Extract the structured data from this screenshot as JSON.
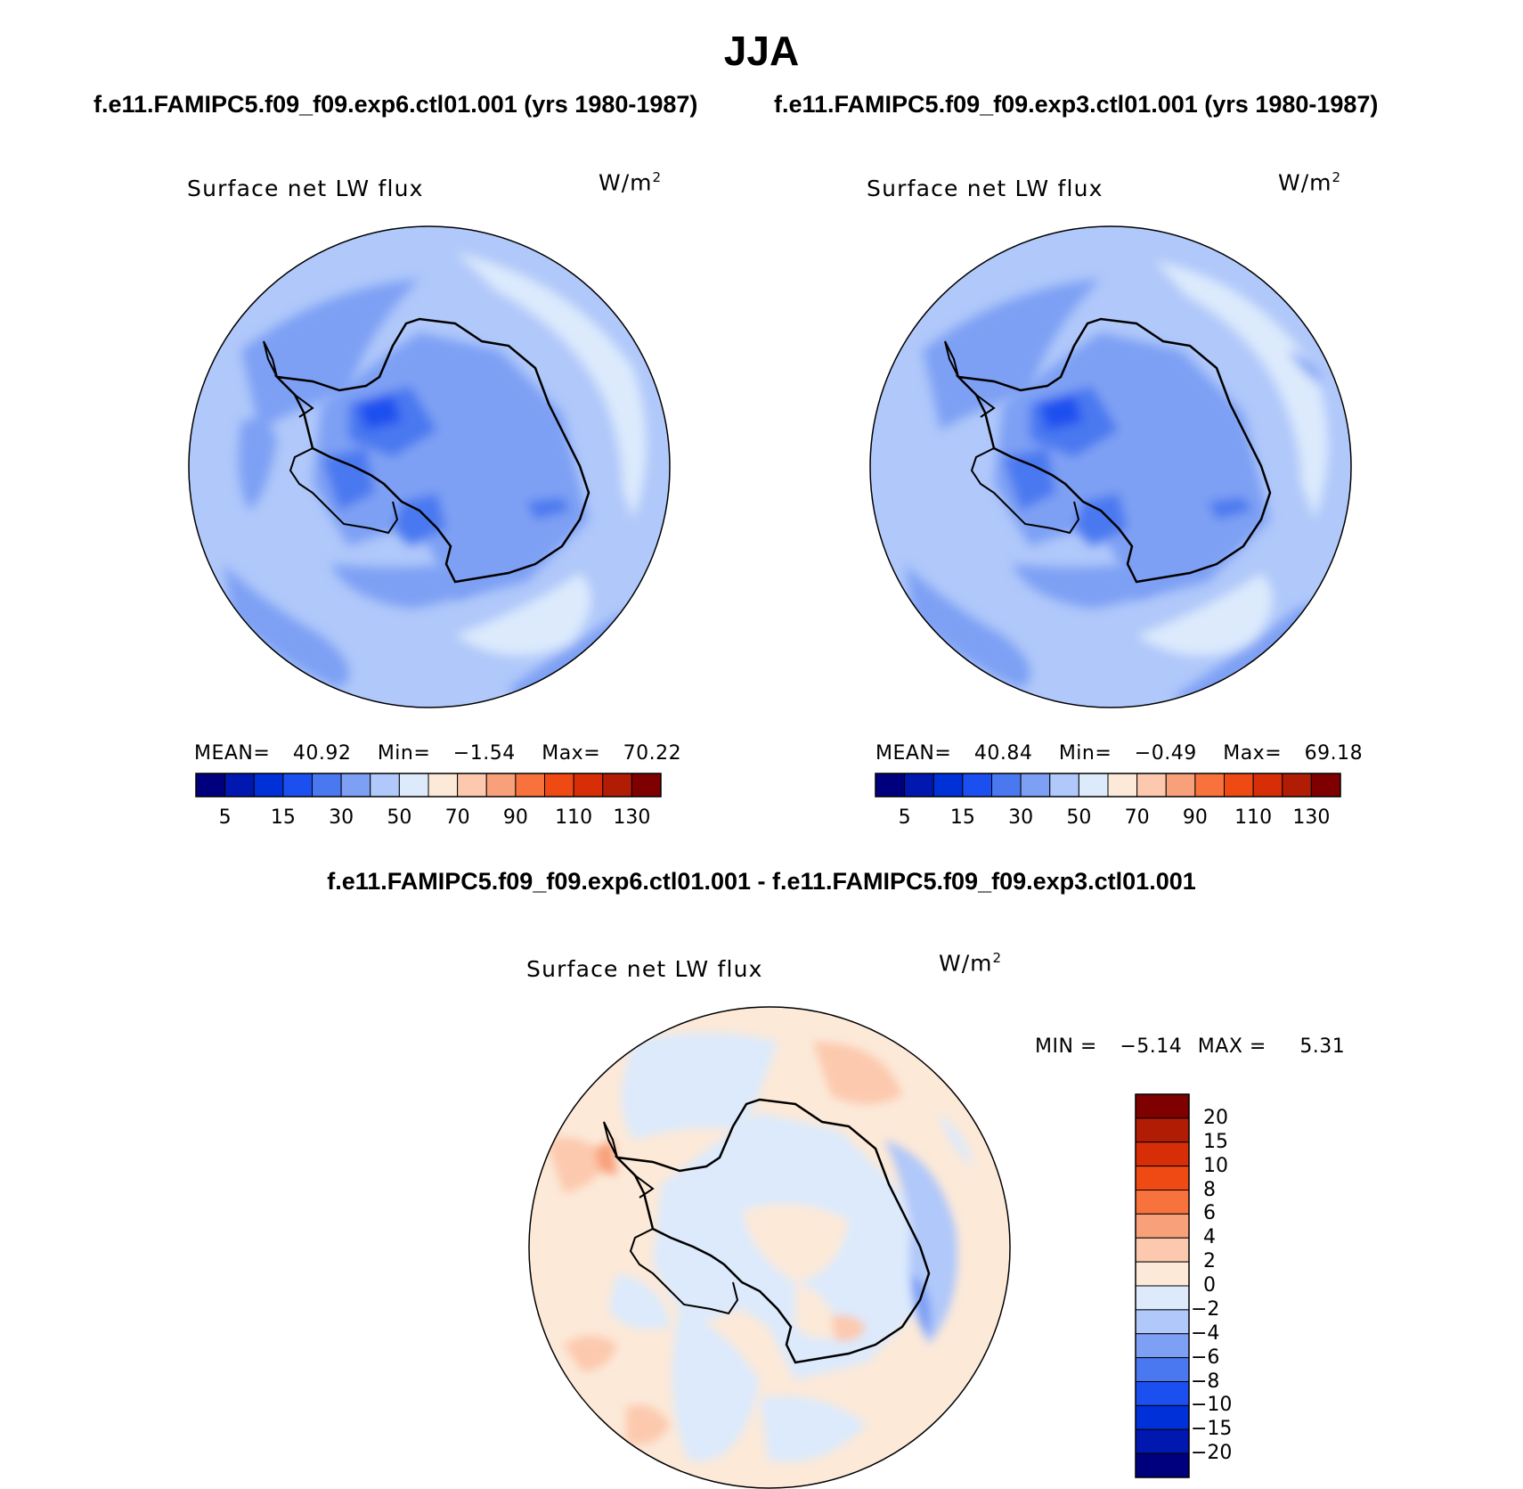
{
  "title": "JJA",
  "panels": [
    {
      "case_title": "f.e11.FAMIPC5.f09_f09.exp6.ctl01.001 (yrs 1980-1987)",
      "label": "Surface net LW flux",
      "units": "W/m",
      "units_sup": "2",
      "mean_label": "MEAN=",
      "mean": "40.92",
      "min_label": "Min=",
      "min": "−1.54",
      "max_label": "Max=",
      "max": "70.22"
    },
    {
      "case_title": "f.e11.FAMIPC5.f09_f09.exp3.ctl01.001 (yrs 1980-1987)",
      "label": "Surface net LW flux",
      "units": "W/m",
      "units_sup": "2",
      "mean_label": "MEAN=",
      "mean": "40.84",
      "min_label": "Min=",
      "min": "−0.49",
      "max_label": "Max=",
      "max": "69.18"
    }
  ],
  "colorbar_abs": {
    "colors": [
      "#00007f",
      "#0018b0",
      "#0030d8",
      "#1c4ff0",
      "#4a78f0",
      "#7ea0f4",
      "#b0c8fa",
      "#dceafc",
      "#fce9d8",
      "#fcc9ae",
      "#f8a07a",
      "#f8723e",
      "#f04a14",
      "#d82e08",
      "#b01c04",
      "#7f0000"
    ],
    "ticks": [
      "5",
      "15",
      "30",
      "50",
      "70",
      "90",
      "110",
      "130"
    ]
  },
  "diff": {
    "title": "f.e11.FAMIPC5.f09_f09.exp6.ctl01.001 - f.e11.FAMIPC5.f09_f09.exp3.ctl01.001",
    "label": "Surface net LW flux",
    "units": "W/m",
    "units_sup": "2",
    "min_label": "MIN =",
    "min": "−5.14",
    "max_label": "MAX =",
    "max": "5.31",
    "colorbar": {
      "colors_top_to_bottom": [
        "#7f0000",
        "#b01c04",
        "#d82e08",
        "#f04a14",
        "#f8723e",
        "#f8a07a",
        "#fcc9ae",
        "#fce9d8",
        "#dceafc",
        "#b0c8fa",
        "#7ea0f4",
        "#4a78f0",
        "#1c4ff0",
        "#0030d8",
        "#0018b0",
        "#00007f"
      ],
      "ticks_top_to_bottom": [
        "20",
        "15",
        "10",
        "8",
        "6",
        "4",
        "2",
        "0",
        "−2",
        "−4",
        "−6",
        "−8",
        "−10",
        "−15",
        "−20"
      ]
    }
  }
}
